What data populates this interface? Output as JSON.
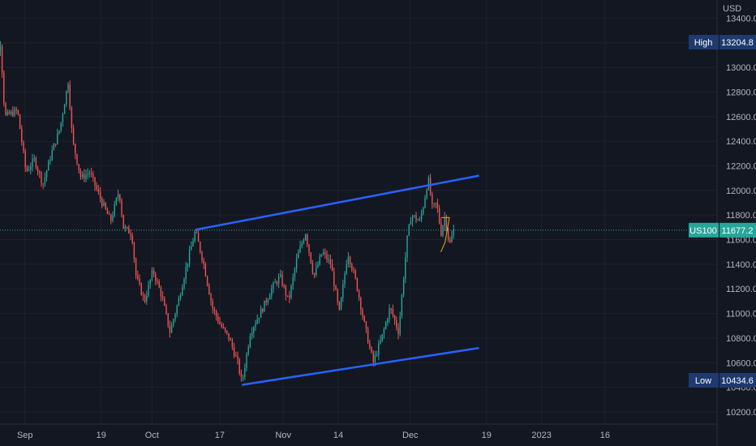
{
  "currency": "USD",
  "symbol": {
    "name": "US100",
    "price": "11677.2",
    "price_value": 11677.2,
    "color": "#26a69a"
  },
  "high_marker": {
    "label": "High",
    "value": "13204.8",
    "price_value": 13204.8
  },
  "low_marker": {
    "label": "Low",
    "value": "10434.6",
    "price_value": 10434.6
  },
  "chart_data": {
    "type": "candlestick",
    "title": "",
    "y_axis": {
      "ticks": [
        "10200.0",
        "10400.0",
        "10600.0",
        "10800.0",
        "11000.0",
        "11200.0",
        "11400.0",
        "11600.0",
        "11800.0",
        "12000.0",
        "12200.0",
        "12400.0",
        "12600.0",
        "12800.0",
        "13000.0",
        "13200.0",
        "13400.0"
      ],
      "range": [
        10125,
        13450
      ]
    },
    "x_axis": {
      "tick_labels": [
        "Sep",
        "19",
        "Oct",
        "17",
        "Nov",
        "14",
        "Dec",
        "19",
        "2023",
        "16"
      ],
      "start": "Aug 24",
      "end": "Jan 20"
    },
    "colors": {
      "up": "#26a69a",
      "down": "#ef5350",
      "trendline": "#2962ff",
      "triangle": "#f5a623"
    },
    "price_path": [
      [
        "Aug 24",
        12800
      ],
      [
        "Aug 26",
        13050
      ],
      [
        "Aug 27",
        13204.8
      ],
      [
        "Aug 28",
        12600
      ],
      [
        "Aug 31",
        12650
      ],
      [
        "Sep 2",
        12150
      ],
      [
        "Sep 4",
        12250
      ],
      [
        "Sep 6",
        12050
      ],
      [
        "Sep 8",
        12300
      ],
      [
        "Sep 10",
        12500
      ],
      [
        "Sep 12",
        12890
      ],
      [
        "Sep 13",
        12400
      ],
      [
        "Sep 15",
        12100
      ],
      [
        "Sep 17",
        12150
      ],
      [
        "Sep 20",
        11900
      ],
      [
        "Sep 22",
        11750
      ],
      [
        "Sep 24",
        12000
      ],
      [
        "Sep 25",
        11700
      ],
      [
        "Sep 27",
        11650
      ],
      [
        "Sep 28",
        11300
      ],
      [
        "Sep 30",
        11100
      ],
      [
        "Oct 2",
        11350
      ],
      [
        "Oct 4",
        11150
      ],
      [
        "Oct 6",
        10850
      ],
      [
        "Oct 8",
        11100
      ],
      [
        "Oct 10",
        11400
      ],
      [
        "Oct 12",
        11670
      ],
      [
        "Oct 14",
        11400
      ],
      [
        "Oct 16",
        11050
      ],
      [
        "Oct 18",
        10900
      ],
      [
        "Oct 20",
        10800
      ],
      [
        "Oct 22",
        10600
      ],
      [
        "Oct 23",
        10434.6
      ],
      [
        "Oct 25",
        10850
      ],
      [
        "Oct 28",
        11050
      ],
      [
        "Oct 30",
        11200
      ],
      [
        "Nov 1",
        11300
      ],
      [
        "Nov 3",
        11100
      ],
      [
        "Nov 5",
        11450
      ],
      [
        "Nov 7",
        11660
      ],
      [
        "Nov 9",
        11300
      ],
      [
        "Nov 11",
        11500
      ],
      [
        "Nov 13",
        11400
      ],
      [
        "Nov 15",
        11000
      ],
      [
        "Nov 17",
        11500
      ],
      [
        "Nov 19",
        11250
      ],
      [
        "Nov 21",
        10900
      ],
      [
        "Nov 23",
        10600
      ],
      [
        "Nov 25",
        10800
      ],
      [
        "Nov 27",
        11050
      ],
      [
        "Nov 29",
        10850
      ],
      [
        "Dec 1",
        11600
      ],
      [
        "Dec 2",
        11800
      ],
      [
        "Dec 4",
        11750
      ],
      [
        "Dec 5",
        11900
      ],
      [
        "Dec 6",
        12100
      ],
      [
        "Dec 7",
        11850
      ],
      [
        "Dec 8",
        11900
      ],
      [
        "Dec 9",
        11650
      ],
      [
        "Dec 10",
        11800
      ],
      [
        "Dec 11",
        11550
      ],
      [
        "Dec 12",
        11677.2
      ]
    ],
    "trendlines": [
      {
        "name": "upper",
        "from": [
          "Oct 12",
          11680
        ],
        "to": [
          "Dec 18",
          12120
        ]
      },
      {
        "name": "lower",
        "from": [
          "Oct 23",
          10420
        ],
        "to": [
          "Dec 18",
          10720
        ]
      }
    ],
    "triangle": [
      [
        "Dec 9",
        11780
      ],
      [
        "Dec 11",
        11780
      ],
      [
        "Dec 10",
        11580
      ],
      [
        "Dec 9",
        11500
      ]
    ]
  }
}
